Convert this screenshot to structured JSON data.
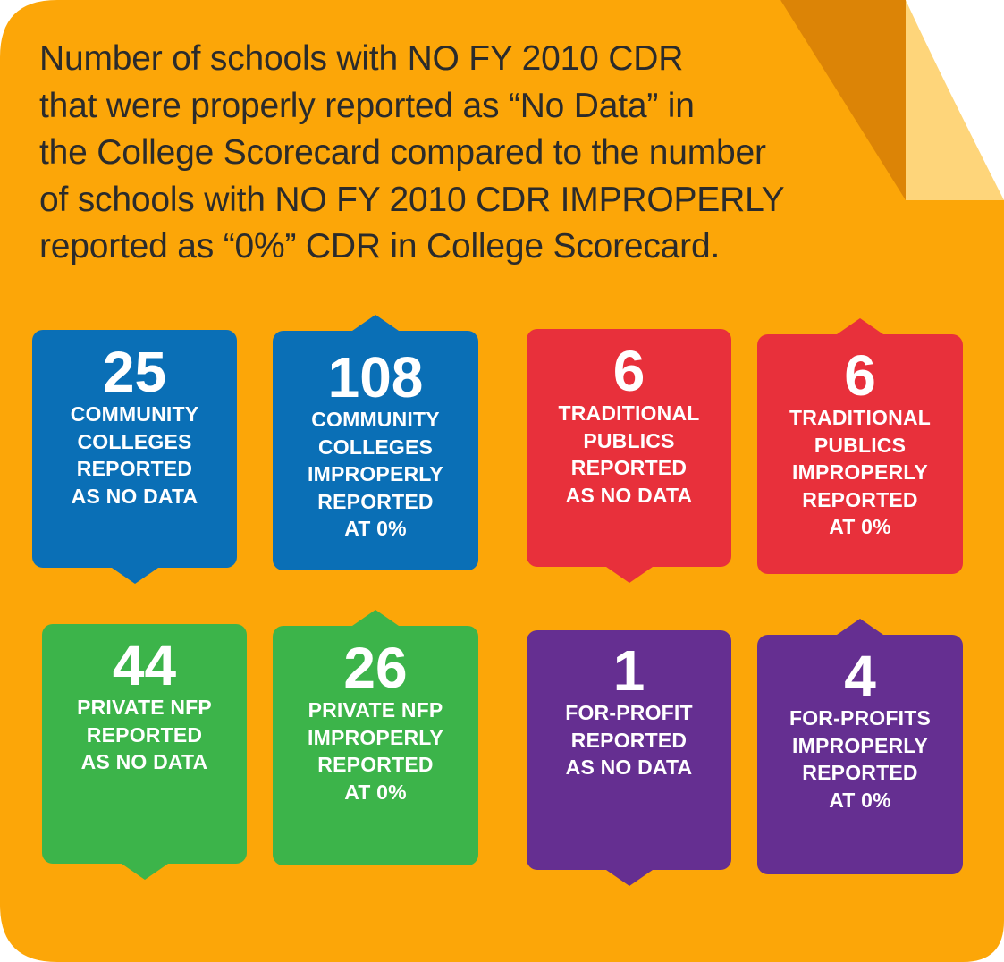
{
  "colors": {
    "background": "#fca608",
    "page_curl_dark": "#dc8406",
    "page_curl_light": "#fed57a",
    "headline_text": "#2b2b2b",
    "blue": "#0a6fb6",
    "red": "#e8303b",
    "green": "#3cb44a",
    "purple": "#652f91",
    "card_text": "#ffffff"
  },
  "headline": {
    "lines": [
      "Number of schools with NO FY 2010 CDR",
      "that were properly reported as “No Data” in",
      "the College Scorecard compared to the number",
      "of schools with NO FY 2010 CDR IMPROPERLY",
      "reported as “0%” CDR in College Scorecard."
    ]
  },
  "cards": [
    {
      "value": "25",
      "lines": [
        "COMMUNITY",
        "COLLEGES",
        "REPORTED",
        "AS NO DATA"
      ]
    },
    {
      "value": "108",
      "lines": [
        "COMMUNITY",
        "COLLEGES",
        "IMPROPERLY",
        "REPORTED",
        "AT 0%"
      ]
    },
    {
      "value": "6",
      "lines": [
        "TRADITIONAL",
        "PUBLICS",
        "REPORTED",
        "AS NO DATA"
      ]
    },
    {
      "value": "6",
      "lines": [
        "TRADITIONAL",
        "PUBLICS",
        "IMPROPERLY",
        "REPORTED",
        "AT 0%"
      ]
    },
    {
      "value": "44",
      "lines": [
        "PRIVATE NFP",
        "REPORTED",
        "AS NO DATA"
      ]
    },
    {
      "value": "26",
      "lines": [
        "PRIVATE NFP",
        "IMPROPERLY",
        "REPORTED",
        "AT 0%"
      ]
    },
    {
      "value": "1",
      "lines": [
        "FOR-PROFIT",
        "REPORTED",
        "AS NO DATA"
      ]
    },
    {
      "value": "4",
      "lines": [
        "FOR-PROFITS",
        "IMPROPERLY",
        "REPORTED",
        "AT 0%"
      ]
    }
  ]
}
